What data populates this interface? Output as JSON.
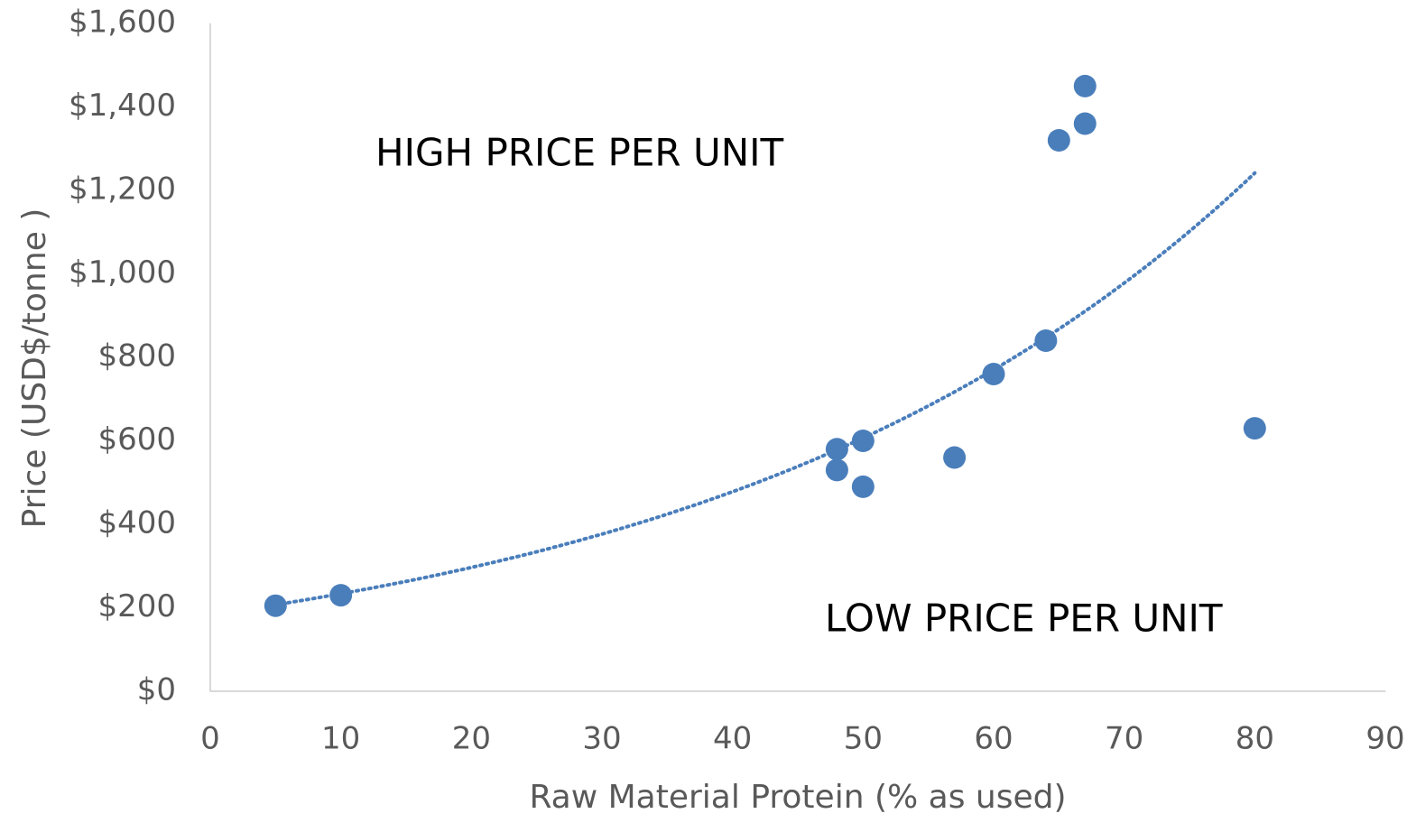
{
  "chart_data": {
    "type": "scatter",
    "x_label": "Raw Material Protein (% as used)",
    "y_label": "Price (USD$/tonne )",
    "annotations": [
      "HIGH PRICE PER UNIT",
      "LOW PRICE PER UNIT"
    ],
    "x": [
      5,
      10,
      48,
      48,
      50,
      50,
      57,
      60,
      64,
      65,
      67,
      67,
      80
    ],
    "series": [
      {
        "color": "#4a7ebb",
        "values": [
          205,
          230,
          580,
          530,
          600,
          490,
          560,
          760,
          840,
          1320,
          1450,
          1360,
          630
        ]
      }
    ],
    "trendline": "exponential",
    "xlim": [
      0,
      90
    ],
    "xticks": [
      0,
      10,
      20,
      30,
      40,
      50,
      60,
      70,
      80,
      90
    ],
    "ylim": [
      0,
      1600
    ],
    "yticks": [
      {
        "value": 0,
        "label": "$0"
      },
      {
        "value": 200,
        "label": "$200"
      },
      {
        "value": 400,
        "label": "$400"
      },
      {
        "value": 600,
        "label": "$600"
      },
      {
        "value": 800,
        "label": "$800"
      },
      {
        "value": 1000,
        "label": "$1,000"
      },
      {
        "value": 1200,
        "label": "$1,200"
      },
      {
        "value": 1400,
        "label": "$1,400"
      },
      {
        "value": 1600,
        "label": "$1,600"
      }
    ],
    "grid": false
  }
}
